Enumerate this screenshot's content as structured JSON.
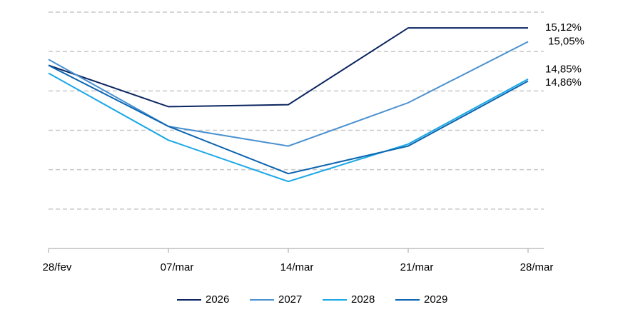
{
  "chart_data": {
    "type": "line",
    "categories": [
      "28/fev",
      "07/mar",
      "14/mar",
      "21/mar",
      "28/mar"
    ],
    "series": [
      {
        "name": "2026",
        "color": "#0b2460",
        "values": [
          14.93,
          14.72,
          14.73,
          15.12,
          15.12
        ],
        "value_labels": [
          null,
          null,
          null,
          null,
          "15,12%"
        ]
      },
      {
        "name": "2027",
        "color": "#4a90d0",
        "values": [
          14.96,
          14.62,
          14.52,
          14.74,
          15.05
        ],
        "value_labels": [
          null,
          null,
          null,
          null,
          "15,05%"
        ]
      },
      {
        "name": "2028",
        "color": "#1aa8e6",
        "values": [
          14.89,
          14.55,
          14.34,
          14.53,
          14.86
        ],
        "value_labels": [
          null,
          null,
          null,
          null,
          "14,86%"
        ]
      },
      {
        "name": "2029",
        "color": "#0a64b0",
        "values": [
          14.93,
          14.62,
          14.38,
          14.52,
          14.85
        ],
        "value_labels": [
          null,
          null,
          null,
          null,
          "14,85%"
        ]
      }
    ],
    "ylim": [
      14.0,
      15.2
    ],
    "yticks": [
      14.2,
      14.4,
      14.6,
      14.8,
      15.0,
      15.2
    ],
    "grid": true
  }
}
